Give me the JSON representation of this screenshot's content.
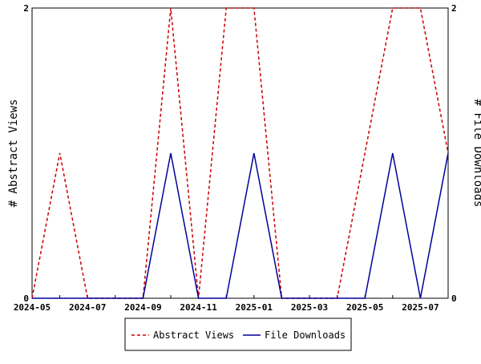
{
  "chart_data": {
    "type": "line",
    "x": [
      "2024-05",
      "2024-06",
      "2024-07",
      "2024-08",
      "2024-09",
      "2024-10",
      "2024-11",
      "2024-12",
      "2025-01",
      "2025-02",
      "2025-03",
      "2025-04",
      "2025-05",
      "2025-06",
      "2025-07",
      "2025-08"
    ],
    "x_tick_labels": [
      "2024-05",
      "2024-07",
      "2024-09",
      "2024-11",
      "2025-01",
      "2025-03",
      "2025-05",
      "2025-07"
    ],
    "series": [
      {
        "name": "Abstract Views",
        "axis": "left",
        "color": "#cc0000",
        "style": "dashed",
        "values": [
          0,
          1,
          0,
          0,
          0,
          2,
          0,
          2,
          2,
          0,
          0,
          0,
          1,
          2,
          2,
          1
        ]
      },
      {
        "name": "File Downloads",
        "axis": "right",
        "color": "#000099",
        "style": "solid",
        "values": [
          0,
          0,
          0,
          0,
          0,
          1,
          0,
          0,
          1,
          0,
          0,
          0,
          0,
          1,
          0,
          1
        ]
      }
    ],
    "ylabel": "# Abstract Views",
    "ylabel_right": "# File Downloads",
    "ylim": [
      0,
      2
    ],
    "y_ticks": [
      0,
      2
    ],
    "y_tick_labels": [
      "0",
      "2"
    ],
    "grid": false,
    "legend_placement": "bottom-center"
  }
}
